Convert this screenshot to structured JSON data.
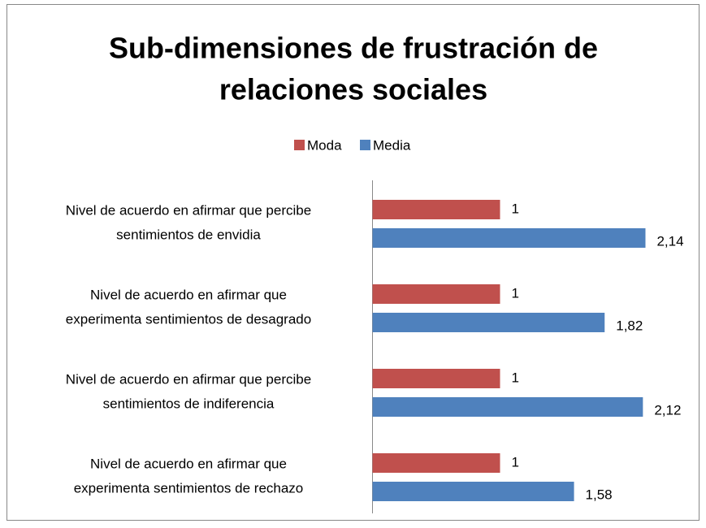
{
  "chart_data": {
    "type": "bar",
    "orientation": "horizontal",
    "title": [
      "Sub-dimensiones de frustración de",
      "relaciones sociales"
    ],
    "categories": [
      [
        "Nivel de acuerdo en afirmar que percibe",
        "sentimientos de envidia"
      ],
      [
        "Nivel de acuerdo en afirmar que",
        "experimenta sentimientos de desagrado"
      ],
      [
        "Nivel de acuerdo en afirmar que percibe",
        "sentimientos de indiferencia"
      ],
      [
        "Nivel de acuerdo en afirmar que",
        "experimenta sentimientos de rechazo"
      ]
    ],
    "series": [
      {
        "name": "Moda",
        "color": "#c0504d",
        "values": [
          1,
          1,
          1,
          1
        ],
        "value_labels": [
          "1",
          "1",
          "1",
          "1"
        ]
      },
      {
        "name": "Media",
        "color": "#4f81bd",
        "values": [
          2.14,
          1.82,
          2.12,
          1.58
        ],
        "value_labels": [
          "2,14",
          "1,82",
          "2,12",
          "1,58"
        ]
      }
    ],
    "legend": "top"
  }
}
